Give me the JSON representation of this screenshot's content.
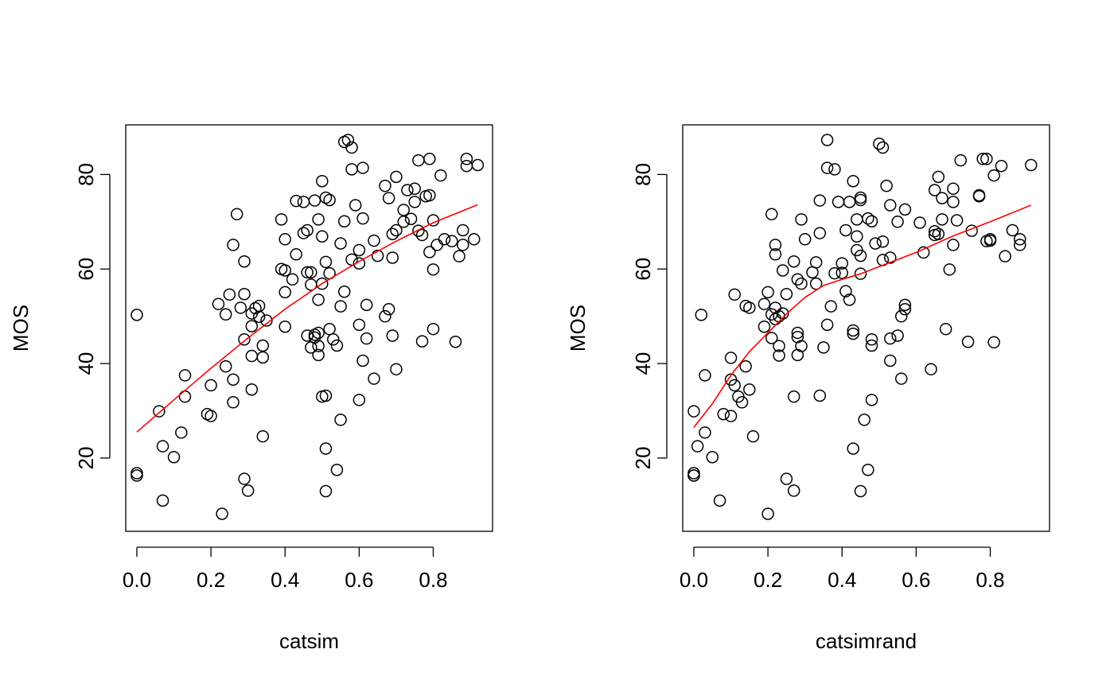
{
  "colors": {
    "points": "#000000",
    "smooth_line": "#ff0000",
    "background": "#ffffff"
  },
  "chart_data": [
    {
      "type": "scatter",
      "xlabel": "catsim",
      "ylabel": "MOS",
      "xlim": [
        -0.03,
        0.96
      ],
      "ylim": [
        4.5,
        90.5
      ],
      "x_ticks": [
        0.0,
        0.2,
        0.4,
        0.6,
        0.8
      ],
      "x_tick_labels": [
        "0.0",
        "0.2",
        "0.4",
        "0.6",
        "0.8"
      ],
      "y_ticks": [
        20,
        40,
        60,
        80
      ],
      "y_tick_labels": [
        "20",
        "40",
        "60",
        "80"
      ],
      "grid": false,
      "points": [
        [
          0.0,
          50.3
        ],
        [
          0.0,
          16.8
        ],
        [
          0.0,
          16.3
        ],
        [
          0.06,
          29.9
        ],
        [
          0.07,
          22.5
        ],
        [
          0.07,
          11.0
        ],
        [
          0.1,
          20.2
        ],
        [
          0.12,
          25.4
        ],
        [
          0.13,
          37.5
        ],
        [
          0.13,
          33.0
        ],
        [
          0.19,
          29.3
        ],
        [
          0.2,
          35.4
        ],
        [
          0.2,
          28.9
        ],
        [
          0.22,
          52.6
        ],
        [
          0.23,
          8.2
        ],
        [
          0.24,
          39.4
        ],
        [
          0.24,
          50.4
        ],
        [
          0.25,
          54.6
        ],
        [
          0.26,
          36.6
        ],
        [
          0.26,
          31.8
        ],
        [
          0.26,
          65.1
        ],
        [
          0.27,
          71.6
        ],
        [
          0.28,
          51.8
        ],
        [
          0.29,
          54.7
        ],
        [
          0.29,
          15.6
        ],
        [
          0.29,
          45.1
        ],
        [
          0.29,
          61.6
        ],
        [
          0.3,
          13.1
        ],
        [
          0.31,
          47.9
        ],
        [
          0.31,
          50.6
        ],
        [
          0.31,
          41.6
        ],
        [
          0.32,
          51.7
        ],
        [
          0.31,
          34.5
        ],
        [
          0.33,
          52.2
        ],
        [
          0.33,
          49.9
        ],
        [
          0.34,
          43.8
        ],
        [
          0.34,
          41.3
        ],
        [
          0.35,
          49.1
        ],
        [
          0.34,
          24.6
        ],
        [
          0.39,
          70.5
        ],
        [
          0.39,
          60.0
        ],
        [
          0.4,
          59.7
        ],
        [
          0.4,
          55.1
        ],
        [
          0.4,
          66.3
        ],
        [
          0.4,
          47.8
        ],
        [
          0.42,
          57.8
        ],
        [
          0.43,
          63.1
        ],
        [
          0.43,
          74.4
        ],
        [
          0.45,
          74.2
        ],
        [
          0.45,
          67.6
        ],
        [
          0.46,
          68.2
        ],
        [
          0.46,
          59.3
        ],
        [
          0.46,
          45.9
        ],
        [
          0.47,
          56.7
        ],
        [
          0.47,
          59.3
        ],
        [
          0.47,
          43.4
        ],
        [
          0.48,
          46.1
        ],
        [
          0.48,
          45.5
        ],
        [
          0.48,
          74.5
        ],
        [
          0.49,
          70.5
        ],
        [
          0.49,
          53.5
        ],
        [
          0.49,
          43.7
        ],
        [
          0.49,
          41.8
        ],
        [
          0.49,
          46.5
        ],
        [
          0.5,
          78.6
        ],
        [
          0.5,
          56.9
        ],
        [
          0.5,
          66.9
        ],
        [
          0.5,
          33.0
        ],
        [
          0.51,
          33.2
        ],
        [
          0.51,
          75.1
        ],
        [
          0.51,
          61.5
        ],
        [
          0.51,
          13.0
        ],
        [
          0.51,
          22.0
        ],
        [
          0.52,
          74.6
        ],
        [
          0.52,
          59.1
        ],
        [
          0.52,
          47.3
        ],
        [
          0.53,
          45.1
        ],
        [
          0.54,
          43.8
        ],
        [
          0.54,
          17.5
        ],
        [
          0.55,
          28.1
        ],
        [
          0.55,
          65.4
        ],
        [
          0.55,
          52.1
        ],
        [
          0.56,
          55.2
        ],
        [
          0.56,
          70.1
        ],
        [
          0.56,
          86.9
        ],
        [
          0.57,
          87.3
        ],
        [
          0.58,
          85.7
        ],
        [
          0.58,
          81.1
        ],
        [
          0.58,
          62.0
        ],
        [
          0.59,
          73.5
        ],
        [
          0.6,
          61.2
        ],
        [
          0.6,
          64.0
        ],
        [
          0.6,
          48.2
        ],
        [
          0.6,
          32.3
        ],
        [
          0.61,
          81.4
        ],
        [
          0.61,
          70.7
        ],
        [
          0.61,
          40.6
        ],
        [
          0.62,
          45.3
        ],
        [
          0.62,
          52.4
        ],
        [
          0.64,
          66.0
        ],
        [
          0.64,
          36.8
        ],
        [
          0.65,
          62.8
        ],
        [
          0.67,
          50.0
        ],
        [
          0.67,
          77.6
        ],
        [
          0.68,
          75.0
        ],
        [
          0.68,
          51.5
        ],
        [
          0.69,
          67.4
        ],
        [
          0.69,
          62.4
        ],
        [
          0.69,
          45.9
        ],
        [
          0.7,
          38.8
        ],
        [
          0.7,
          68.2
        ],
        [
          0.7,
          79.5
        ],
        [
          0.72,
          72.5
        ],
        [
          0.72,
          70.0
        ],
        [
          0.73,
          76.7
        ],
        [
          0.74,
          70.6
        ],
        [
          0.75,
          74.2
        ],
        [
          0.75,
          77.0
        ],
        [
          0.76,
          83.0
        ],
        [
          0.76,
          68.1
        ],
        [
          0.77,
          67.2
        ],
        [
          0.77,
          44.7
        ],
        [
          0.78,
          75.4
        ],
        [
          0.79,
          75.6
        ],
        [
          0.79,
          83.3
        ],
        [
          0.79,
          63.6
        ],
        [
          0.8,
          59.9
        ],
        [
          0.8,
          70.3
        ],
        [
          0.8,
          47.3
        ],
        [
          0.81,
          65.1
        ],
        [
          0.82,
          79.8
        ],
        [
          0.83,
          66.3
        ],
        [
          0.85,
          65.9
        ],
        [
          0.86,
          44.6
        ],
        [
          0.87,
          62.7
        ],
        [
          0.88,
          65.1
        ],
        [
          0.88,
          68.2
        ],
        [
          0.89,
          83.3
        ],
        [
          0.89,
          81.8
        ],
        [
          0.91,
          66.3
        ],
        [
          0.92,
          82.0
        ]
      ],
      "smooth": [
        [
          0.0,
          25.5
        ],
        [
          0.1,
          32.3
        ],
        [
          0.2,
          39.0
        ],
        [
          0.3,
          45.4
        ],
        [
          0.4,
          51.5
        ],
        [
          0.5,
          56.9
        ],
        [
          0.6,
          61.6
        ],
        [
          0.7,
          65.9
        ],
        [
          0.8,
          69.8
        ],
        [
          0.92,
          73.6
        ]
      ]
    },
    {
      "type": "scatter",
      "xlabel": "catsimrand",
      "ylabel": "MOS",
      "xlim": [
        -0.03,
        0.96
      ],
      "ylim": [
        4.5,
        90.5
      ],
      "x_ticks": [
        0.0,
        0.2,
        0.4,
        0.6,
        0.8
      ],
      "x_tick_labels": [
        "0.0",
        "0.2",
        "0.4",
        "0.6",
        "0.8"
      ],
      "y_ticks": [
        20,
        40,
        60,
        80
      ],
      "y_tick_labels": [
        "20",
        "40",
        "60",
        "80"
      ],
      "grid": false,
      "points": [
        [
          0.0,
          29.9
        ],
        [
          0.0,
          16.8
        ],
        [
          0.0,
          16.3
        ],
        [
          0.01,
          22.5
        ],
        [
          0.02,
          50.3
        ],
        [
          0.03,
          25.4
        ],
        [
          0.03,
          37.5
        ],
        [
          0.05,
          20.2
        ],
        [
          0.07,
          11.0
        ],
        [
          0.08,
          29.3
        ],
        [
          0.1,
          36.6
        ],
        [
          0.1,
          41.2
        ],
        [
          0.1,
          28.9
        ],
        [
          0.11,
          35.4
        ],
        [
          0.11,
          54.6
        ],
        [
          0.12,
          33.0
        ],
        [
          0.13,
          31.8
        ],
        [
          0.14,
          52.2
        ],
        [
          0.14,
          39.4
        ],
        [
          0.15,
          51.8
        ],
        [
          0.15,
          34.5
        ],
        [
          0.16,
          24.6
        ],
        [
          0.19,
          47.8
        ],
        [
          0.19,
          52.6
        ],
        [
          0.2,
          8.2
        ],
        [
          0.2,
          55.1
        ],
        [
          0.21,
          50.4
        ],
        [
          0.21,
          71.6
        ],
        [
          0.21,
          45.4
        ],
        [
          0.22,
          51.8
        ],
        [
          0.22,
          49.4
        ],
        [
          0.22,
          63.1
        ],
        [
          0.22,
          65.1
        ],
        [
          0.23,
          43.7
        ],
        [
          0.23,
          41.7
        ],
        [
          0.23,
          50.0
        ],
        [
          0.24,
          59.7
        ],
        [
          0.24,
          50.6
        ],
        [
          0.25,
          15.6
        ],
        [
          0.25,
          54.7
        ],
        [
          0.27,
          61.6
        ],
        [
          0.27,
          13.1
        ],
        [
          0.27,
          33.0
        ],
        [
          0.28,
          57.8
        ],
        [
          0.28,
          45.6
        ],
        [
          0.28,
          46.5
        ],
        [
          0.29,
          43.7
        ],
        [
          0.28,
          41.8
        ],
        [
          0.29,
          70.5
        ],
        [
          0.29,
          56.9
        ],
        [
          0.3,
          66.3
        ],
        [
          0.32,
          59.3
        ],
        [
          0.33,
          56.9
        ],
        [
          0.33,
          61.4
        ],
        [
          0.34,
          74.5
        ],
        [
          0.34,
          67.6
        ],
        [
          0.34,
          33.2
        ],
        [
          0.35,
          43.4
        ],
        [
          0.36,
          48.2
        ],
        [
          0.36,
          87.3
        ],
        [
          0.36,
          81.4
        ],
        [
          0.37,
          52.1
        ],
        [
          0.38,
          81.1
        ],
        [
          0.38,
          59.1
        ],
        [
          0.39,
          74.2
        ],
        [
          0.4,
          59.2
        ],
        [
          0.4,
          61.2
        ],
        [
          0.41,
          68.2
        ],
        [
          0.41,
          55.3
        ],
        [
          0.42,
          74.2
        ],
        [
          0.42,
          53.5
        ],
        [
          0.43,
          78.6
        ],
        [
          0.43,
          47.0
        ],
        [
          0.43,
          46.3
        ],
        [
          0.43,
          22.0
        ],
        [
          0.44,
          70.5
        ],
        [
          0.44,
          64.0
        ],
        [
          0.44,
          66.9
        ],
        [
          0.45,
          74.6
        ],
        [
          0.45,
          75.1
        ],
        [
          0.45,
          62.8
        ],
        [
          0.45,
          59.0
        ],
        [
          0.45,
          13.0
        ],
        [
          0.46,
          28.1
        ],
        [
          0.47,
          70.7
        ],
        [
          0.47,
          17.5
        ],
        [
          0.48,
          70.1
        ],
        [
          0.48,
          45.1
        ],
        [
          0.48,
          43.8
        ],
        [
          0.48,
          32.3
        ],
        [
          0.49,
          65.4
        ],
        [
          0.5,
          86.5
        ],
        [
          0.51,
          65.8
        ],
        [
          0.51,
          61.9
        ],
        [
          0.51,
          85.7
        ],
        [
          0.52,
          77.6
        ],
        [
          0.53,
          62.4
        ],
        [
          0.53,
          73.5
        ],
        [
          0.53,
          45.3
        ],
        [
          0.53,
          40.6
        ],
        [
          0.55,
          70.0
        ],
        [
          0.55,
          45.9
        ],
        [
          0.56,
          36.8
        ],
        [
          0.56,
          50.0
        ],
        [
          0.57,
          72.6
        ],
        [
          0.57,
          52.4
        ],
        [
          0.57,
          51.5
        ],
        [
          0.61,
          69.8
        ],
        [
          0.62,
          63.5
        ],
        [
          0.64,
          38.8
        ],
        [
          0.65,
          68.0
        ],
        [
          0.65,
          76.7
        ],
        [
          0.65,
          67.2
        ],
        [
          0.66,
          67.4
        ],
        [
          0.66,
          79.5
        ],
        [
          0.67,
          70.5
        ],
        [
          0.67,
          75.0
        ],
        [
          0.68,
          47.3
        ],
        [
          0.69,
          59.9
        ],
        [
          0.7,
          77.0
        ],
        [
          0.7,
          74.2
        ],
        [
          0.7,
          65.1
        ],
        [
          0.71,
          70.3
        ],
        [
          0.72,
          83.0
        ],
        [
          0.74,
          44.6
        ],
        [
          0.75,
          68.1
        ],
        [
          0.77,
          75.6
        ],
        [
          0.77,
          75.4
        ],
        [
          0.78,
          83.3
        ],
        [
          0.79,
          83.3
        ],
        [
          0.8,
          66.3
        ],
        [
          0.8,
          66.0
        ],
        [
          0.81,
          79.8
        ],
        [
          0.81,
          44.5
        ],
        [
          0.83,
          81.8
        ],
        [
          0.84,
          62.7
        ],
        [
          0.86,
          68.2
        ],
        [
          0.88,
          66.3
        ],
        [
          0.88,
          65.1
        ],
        [
          0.91,
          82.0
        ],
        [
          0.0,
          16.3
        ],
        [
          0.79,
          65.9
        ]
      ],
      "smooth": [
        [
          0.0,
          26.5
        ],
        [
          0.05,
          31.5
        ],
        [
          0.1,
          37.5
        ],
        [
          0.15,
          42.5
        ],
        [
          0.2,
          46.5
        ],
        [
          0.25,
          50.5
        ],
        [
          0.3,
          54.0
        ],
        [
          0.35,
          56.5
        ],
        [
          0.4,
          57.8
        ],
        [
          0.45,
          59.0
        ],
        [
          0.5,
          60.5
        ],
        [
          0.6,
          63.5
        ],
        [
          0.7,
          67.0
        ],
        [
          0.8,
          70.0
        ],
        [
          0.91,
          73.5
        ]
      ]
    }
  ]
}
